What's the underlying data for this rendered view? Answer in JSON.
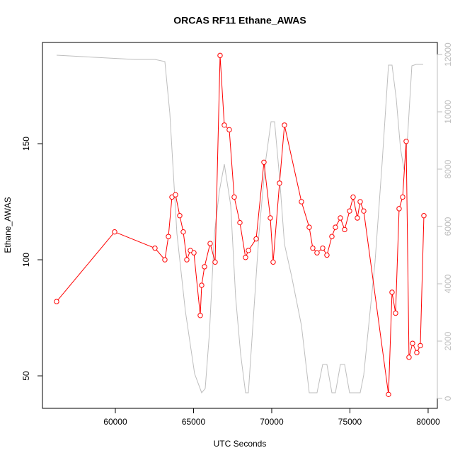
{
  "chart_data": {
    "type": "line",
    "title": "ORCAS RF11 Ethane_AWAS",
    "x_label": "UTC Seconds",
    "y_label": "Ethane_AWAS",
    "xlim": [
      55340,
      80590
    ],
    "xticks": [
      60000,
      65000,
      70000,
      75000,
      80000
    ],
    "ylim": [
      36,
      193.6
    ],
    "yticks": [
      50,
      100,
      150
    ],
    "y2lim": [
      -346,
      12420
    ],
    "y2ticks": [
      0,
      2000,
      4000,
      6000,
      8000,
      10000,
      12000
    ],
    "series": [
      {
        "color": "#ff0000",
        "marker": "circle",
        "x": [
          56244,
          59955,
          62534,
          63167,
          63394,
          63620,
          63846,
          64118,
          64344,
          64570,
          64796,
          65023,
          65430,
          65520,
          65701,
          66063,
          66380,
          66697,
          66968,
          67285,
          67602,
          67964,
          68326,
          68507,
          69005,
          69502,
          69910,
          70090,
          70498,
          70814,
          71900,
          72398,
          72624,
          72896,
          73258,
          73529,
          73846,
          74072,
          74389,
          74661,
          74977,
          75204,
          75475,
          75656,
          75882,
          77466,
          77692,
          77919,
          78145,
          78371,
          78597,
          78778,
          79005,
          79276,
          79502,
          79729
        ],
        "values": [
          82,
          112,
          105,
          100,
          110,
          127,
          128,
          119,
          112,
          100,
          104,
          103,
          76,
          89,
          97,
          107,
          99,
          188,
          158,
          156,
          127,
          116,
          101,
          104,
          109,
          142,
          118,
          99,
          133,
          158,
          125,
          114,
          105,
          103,
          105,
          102,
          110,
          114,
          118,
          113,
          121,
          127,
          118,
          125,
          121,
          42,
          86,
          77,
          122,
          127,
          151,
          58,
          64,
          60,
          63,
          119
        ]
      },
      {
        "color": "#bebebe",
        "axis": "y2",
        "x": [
          56244,
          61222,
          62534,
          63167,
          63484,
          63937,
          64480,
          65068,
          65520,
          65747,
          66018,
          66335,
          66652,
          66968,
          67376,
          67692,
          68009,
          68326,
          68507,
          68824,
          69186,
          69593,
          69955,
          70181,
          70498,
          70814,
          71267,
          71900,
          72398,
          72896,
          73258,
          73529,
          73846,
          74072,
          74389,
          74661,
          74977,
          75656,
          75882,
          76606,
          77059,
          77466,
          77692,
          77964,
          78235,
          78462,
          78688,
          78959,
          79231,
          79683
        ],
        "values": [
          11975,
          11827,
          11827,
          11753,
          9951,
          5753,
          3037,
          864,
          198,
          346,
          2296,
          5753,
          7235,
          8173,
          6741,
          3531,
          1556,
          198,
          198,
          2790,
          5753,
          8222,
          9654,
          9654,
          7728,
          5383,
          4272,
          2543,
          198,
          198,
          1185,
          1185,
          198,
          198,
          1185,
          1185,
          198,
          198,
          815,
          4765,
          8222,
          11630,
          11630,
          10444,
          8716,
          7975,
          9136,
          11605,
          11654,
          11654
        ]
      }
    ]
  }
}
